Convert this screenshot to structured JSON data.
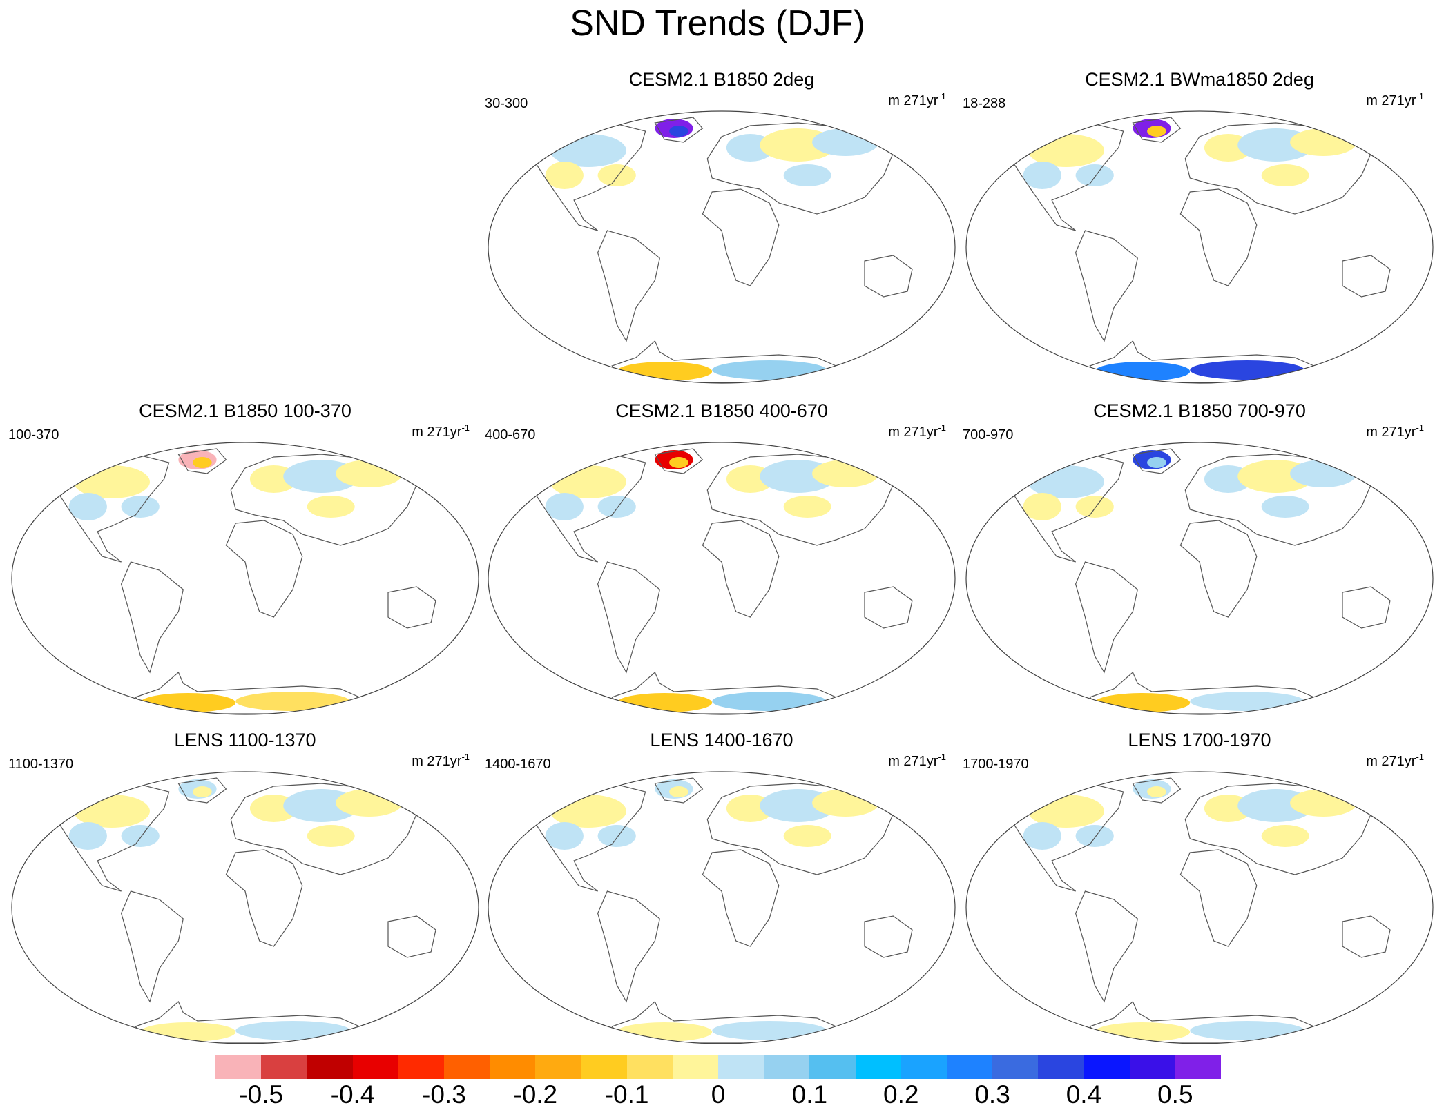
{
  "title": "SND Trends (DJF)",
  "panels": [
    {
      "title": "CESM2.1 B1850 2deg",
      "range": "30-300",
      "units": "m 271yr",
      "units_exp": "-1",
      "pattern": "strong_pos_greenland"
    },
    {
      "title": "CESM2.1 BWma1850 2deg",
      "range": "18-288",
      "units": "m 271yr",
      "units_exp": "-1",
      "pattern": "strong_pos_antarctica"
    },
    {
      "title": "CESM2.1 B1850 100-370",
      "range": "100-370",
      "units": "m 271yr",
      "units_exp": "-1",
      "pattern": "neg_greenland"
    },
    {
      "title": "CESM2.1 B1850 400-670",
      "range": "400-670",
      "units": "m 271yr",
      "units_exp": "-1",
      "pattern": "neg_greenland_mixed"
    },
    {
      "title": "CESM2.1 B1850 700-970",
      "range": "700-970",
      "units": "m 271yr",
      "units_exp": "-1",
      "pattern": "pos_greenland"
    },
    {
      "title": "LENS 1100-1370",
      "range": "1100-1370",
      "units": "m 271yr",
      "units_exp": "-1",
      "pattern": "weak"
    },
    {
      "title": "LENS 1400-1670",
      "range": "1400-1670",
      "units": "m 271yr",
      "units_exp": "-1",
      "pattern": "weak"
    },
    {
      "title": "LENS 1700-1970",
      "range": "1700-1970",
      "units": "m 271yr",
      "units_exp": "-1",
      "pattern": "weak"
    }
  ],
  "colorbar": {
    "colors": [
      "#F9B3B8",
      "#D94040",
      "#C00000",
      "#E80000",
      "#FF2A00",
      "#FF6000",
      "#FF8C00",
      "#FFAA10",
      "#FFCC20",
      "#FFE060",
      "#FFF59A",
      "#BFE3F5",
      "#96D1F0",
      "#55BFF0",
      "#00BFFF",
      "#1AA3FF",
      "#1E82FF",
      "#3A6BE0",
      "#2A45E0",
      "#0A16FF",
      "#3A10E8",
      "#8020E8"
    ],
    "tick_labels": [
      "-0.5",
      "-0.4",
      "-0.3",
      "-0.2",
      "-0.1",
      "0",
      "0.1",
      "0.2",
      "0.3",
      "0.4",
      "0.5"
    ]
  }
}
